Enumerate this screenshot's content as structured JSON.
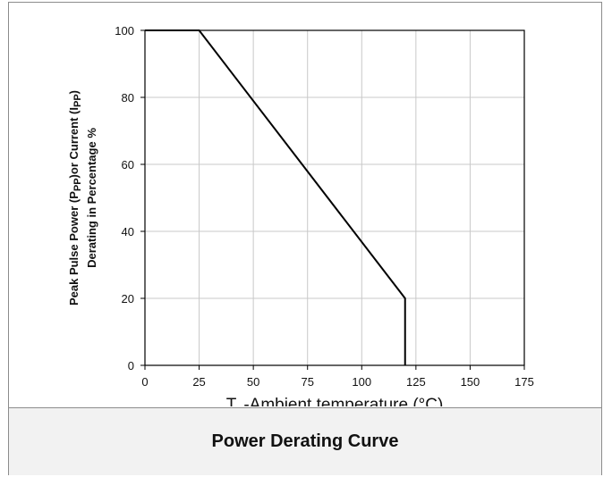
{
  "chart_data": {
    "type": "line",
    "xlabel_t": "T",
    "xlabel_sub": "A",
    "xlabel_rest": "-Ambient temperature (°C)",
    "ylabel_line1_a": "Peak Pulse Power (P",
    "ylabel_line1_sub1": "PP",
    "ylabel_line1_b": ")or Current (I",
    "ylabel_line1_sub2": "PP",
    "ylabel_line1_c": ")",
    "ylabel_line2": "Derating in Percentage %",
    "xlim": [
      0,
      175
    ],
    "ylim": [
      0,
      100
    ],
    "xticks": [
      "0",
      "25",
      "50",
      "75",
      "100",
      "125",
      "150",
      "175"
    ],
    "yticks": [
      "0",
      "20",
      "40",
      "60",
      "80",
      "100"
    ],
    "grid": true,
    "series": [
      {
        "points": [
          [
            0,
            100
          ],
          [
            25,
            100
          ],
          [
            120,
            20
          ],
          [
            120,
            0
          ]
        ],
        "color": "#000000"
      }
    ]
  },
  "footer": {
    "title": "Power Derating Curve"
  }
}
